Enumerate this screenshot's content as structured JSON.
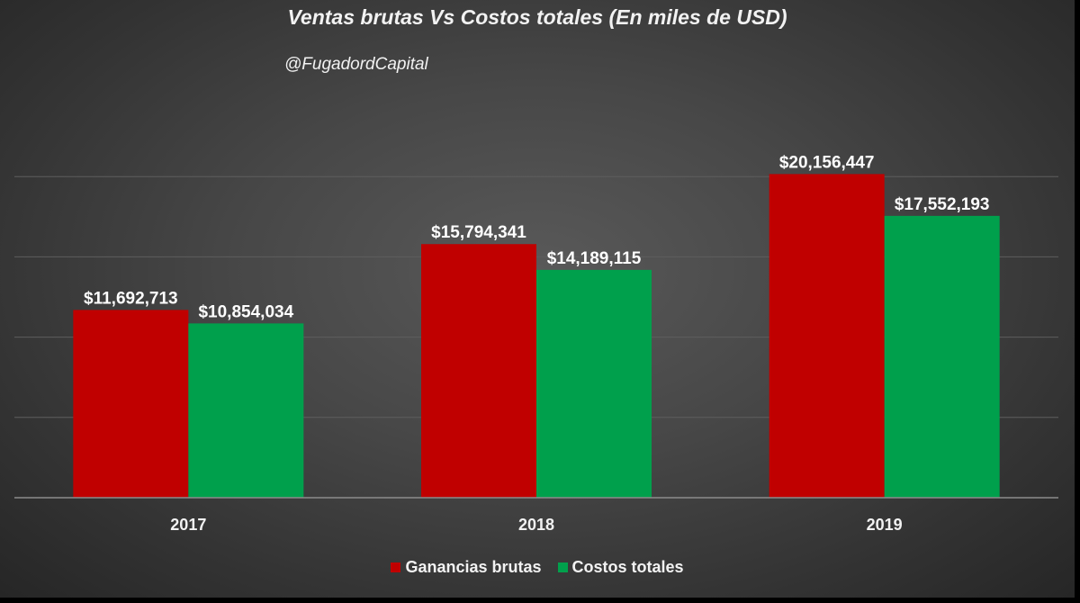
{
  "title": "Ventas brutas Vs Costos totales (En miles de USD)",
  "subtitle": "@FugadordCapital",
  "colors": {
    "series_0": "#c00000",
    "series_1": "#00a04c"
  },
  "chart_data": {
    "type": "bar",
    "title": "Ventas brutas Vs Costos totales (En miles de USD)",
    "categories": [
      "2017",
      "2018",
      "2019"
    ],
    "series": [
      {
        "name": "Ganancias brutas",
        "values": [
          11692713,
          15794341,
          20156447
        ],
        "labels": [
          "$11,692,713",
          "$15,794,341",
          "$20,156,447"
        ]
      },
      {
        "name": "Costos totales",
        "values": [
          10854034,
          14189115,
          17552193
        ],
        "labels": [
          "$10,854,034",
          "$14,189,115",
          "$17,552,193"
        ]
      }
    ],
    "ylim": [
      0,
      25000000
    ],
    "grid": true,
    "legend": "bottom"
  }
}
